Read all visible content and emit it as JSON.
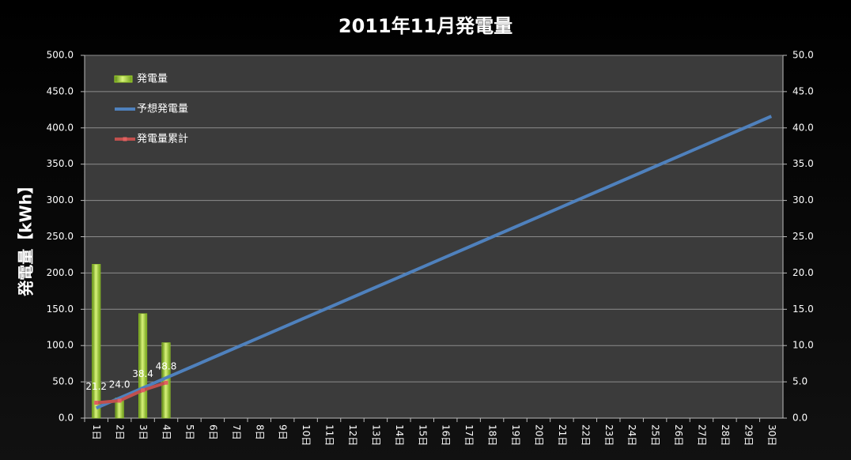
{
  "chart_data": {
    "type": "combo",
    "title": "2011年11月発電量",
    "y_axis_label": "発電量【kWh】",
    "categories": [
      "1日",
      "2日",
      "3日",
      "4日",
      "5日",
      "6日",
      "7日",
      "8日",
      "9日",
      "10日",
      "11日",
      "12日",
      "13日",
      "14日",
      "15日",
      "16日",
      "17日",
      "18日",
      "19日",
      "20日",
      "21日",
      "22日",
      "23日",
      "24日",
      "25日",
      "26日",
      "27日",
      "28日",
      "29日",
      "30日"
    ],
    "series": [
      {
        "name": "発電量",
        "type": "bar",
        "axis": "y2",
        "color": "#9bd12a",
        "values": [
          21.2,
          2.8,
          14.4,
          10.4,
          null,
          null,
          null,
          null,
          null,
          null,
          null,
          null,
          null,
          null,
          null,
          null,
          null,
          null,
          null,
          null,
          null,
          null,
          null,
          null,
          null,
          null,
          null,
          null,
          null,
          null
        ]
      },
      {
        "name": "予想発電量",
        "type": "line",
        "axis": "y",
        "color": "#4f81bd",
        "values": [
          13.9,
          27.7,
          41.6,
          55.5,
          69.3,
          83.2,
          97.1,
          110.9,
          124.8,
          138.7,
          152.5,
          166.4,
          180.3,
          194.1,
          208.0,
          221.9,
          235.7,
          249.6,
          263.5,
          277.3,
          291.2,
          305.1,
          318.9,
          332.8,
          346.7,
          360.5,
          374.4,
          388.3,
          402.1,
          416.0
        ]
      },
      {
        "name": "発電量累計",
        "type": "line",
        "axis": "y",
        "color": "#c0504d",
        "markers": true,
        "values": [
          21.2,
          24.0,
          38.4,
          48.8,
          null,
          null,
          null,
          null,
          null,
          null,
          null,
          null,
          null,
          null,
          null,
          null,
          null,
          null,
          null,
          null,
          null,
          null,
          null,
          null,
          null,
          null,
          null,
          null,
          null,
          null
        ],
        "value_labels": [
          "21.2",
          "24.0",
          "38.4",
          "48.8",
          null,
          null,
          null,
          null,
          null,
          null,
          null,
          null,
          null,
          null,
          null,
          null,
          null,
          null,
          null,
          null,
          null,
          null,
          null,
          null,
          null,
          null,
          null,
          null,
          null,
          null
        ]
      }
    ],
    "ylim": [
      0,
      500
    ],
    "yticks": [
      {
        "value": 0,
        "label": "0.0"
      },
      {
        "value": 50,
        "label": "50.0"
      },
      {
        "value": 100,
        "label": "100.0"
      },
      {
        "value": 150,
        "label": "150.0"
      },
      {
        "value": 200,
        "label": "200.0"
      },
      {
        "value": 250,
        "label": "250.0"
      },
      {
        "value": 300,
        "label": "300.0"
      },
      {
        "value": 350,
        "label": "350.0"
      },
      {
        "value": 400,
        "label": "400.0"
      },
      {
        "value": 450,
        "label": "450.0"
      },
      {
        "value": 500,
        "label": "500.0"
      }
    ],
    "y2lim": [
      0,
      50
    ],
    "y2ticks": [
      {
        "value": 0,
        "label": "0.0"
      },
      {
        "value": 5,
        "label": "5.0"
      },
      {
        "value": 10,
        "label": "10.0"
      },
      {
        "value": 15,
        "label": "15.0"
      },
      {
        "value": 20,
        "label": "20.0"
      },
      {
        "value": 25,
        "label": "25.0"
      },
      {
        "value": 30,
        "label": "30.0"
      },
      {
        "value": 35,
        "label": "35.0"
      },
      {
        "value": 40,
        "label": "40.0"
      },
      {
        "value": 45,
        "label": "45.0"
      },
      {
        "value": 50,
        "label": "50.0"
      }
    ],
    "grid": true,
    "legend": "top-left"
  }
}
